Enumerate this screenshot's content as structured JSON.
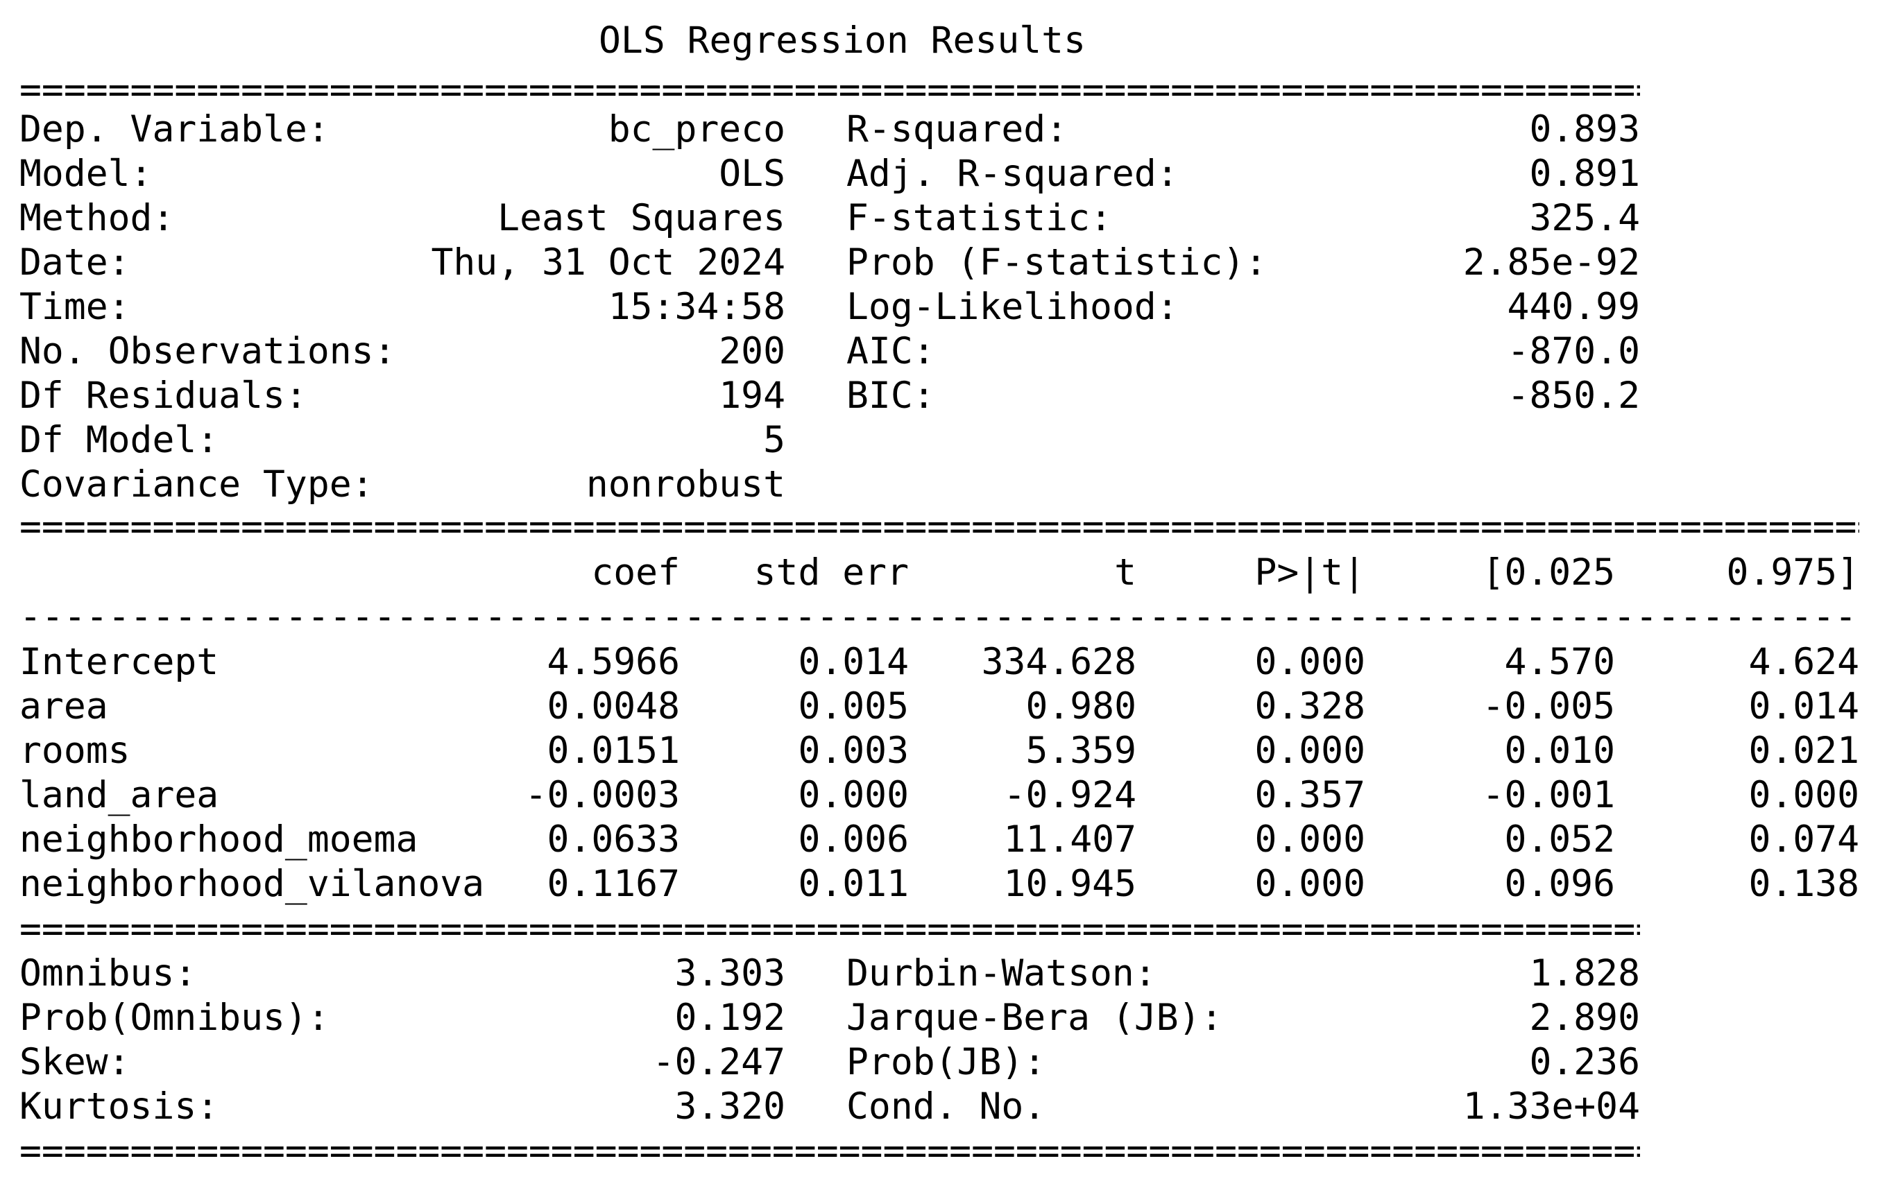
{
  "title": "OLS Regression Results",
  "separators": {
    "double_short": "==============================================================================",
    "double_long": "====================================================================================",
    "dash_long": "------------------------------------------------------------------------------------"
  },
  "model_info": {
    "left": [
      {
        "label": "Dep. Variable:",
        "value": "bc_preco"
      },
      {
        "label": "Model:",
        "value": "OLS"
      },
      {
        "label": "Method:",
        "value": "Least Squares"
      },
      {
        "label": "Date:",
        "value": "Thu, 31 Oct 2024"
      },
      {
        "label": "Time:",
        "value": "15:34:58"
      },
      {
        "label": "No. Observations:",
        "value": "200"
      },
      {
        "label": "Df Residuals:",
        "value": "194"
      },
      {
        "label": "Df Model:",
        "value": "5"
      },
      {
        "label": "Covariance Type:",
        "value": "nonrobust"
      }
    ],
    "right": [
      {
        "label": "R-squared:",
        "value": "0.893"
      },
      {
        "label": "Adj. R-squared:",
        "value": "0.891"
      },
      {
        "label": "F-statistic:",
        "value": "325.4"
      },
      {
        "label": "Prob (F-statistic):",
        "value": "2.85e-92"
      },
      {
        "label": "Log-Likelihood:",
        "value": "440.99"
      },
      {
        "label": "AIC:",
        "value": "-870.0"
      },
      {
        "label": "BIC:",
        "value": "-850.2"
      }
    ]
  },
  "coef_table": {
    "headers": [
      "coef",
      "std err",
      "t",
      "P>|t|",
      "[0.025",
      "0.975]"
    ],
    "rows": [
      {
        "name": "Intercept",
        "values": [
          "4.5966",
          "0.014",
          "334.628",
          "0.000",
          "4.570",
          "4.624"
        ]
      },
      {
        "name": "area",
        "values": [
          "0.0048",
          "0.005",
          "0.980",
          "0.328",
          "-0.005",
          "0.014"
        ]
      },
      {
        "name": "rooms",
        "values": [
          "0.0151",
          "0.003",
          "5.359",
          "0.000",
          "0.010",
          "0.021"
        ]
      },
      {
        "name": "land_area",
        "values": [
          "-0.0003",
          "0.000",
          "-0.924",
          "0.357",
          "-0.001",
          "0.000"
        ]
      },
      {
        "name": "neighborhood_moema",
        "values": [
          "0.0633",
          "0.006",
          "11.407",
          "0.000",
          "0.052",
          "0.074"
        ]
      },
      {
        "name": "neighborhood_vilanova",
        "values": [
          "0.1167",
          "0.011",
          "10.945",
          "0.000",
          "0.096",
          "0.138"
        ]
      }
    ]
  },
  "diagnostics": {
    "left": [
      {
        "label": "Omnibus:",
        "value": "3.303"
      },
      {
        "label": "Prob(Omnibus):",
        "value": "0.192"
      },
      {
        "label": "Skew:",
        "value": "-0.247"
      },
      {
        "label": "Kurtosis:",
        "value": "3.320"
      }
    ],
    "right": [
      {
        "label": "Durbin-Watson:",
        "value": "1.828"
      },
      {
        "label": "Jarque-Bera (JB):",
        "value": "2.890"
      },
      {
        "label": "Prob(JB):",
        "value": "0.236"
      },
      {
        "label": "Cond. No.",
        "value": "1.33e+04"
      }
    ]
  }
}
